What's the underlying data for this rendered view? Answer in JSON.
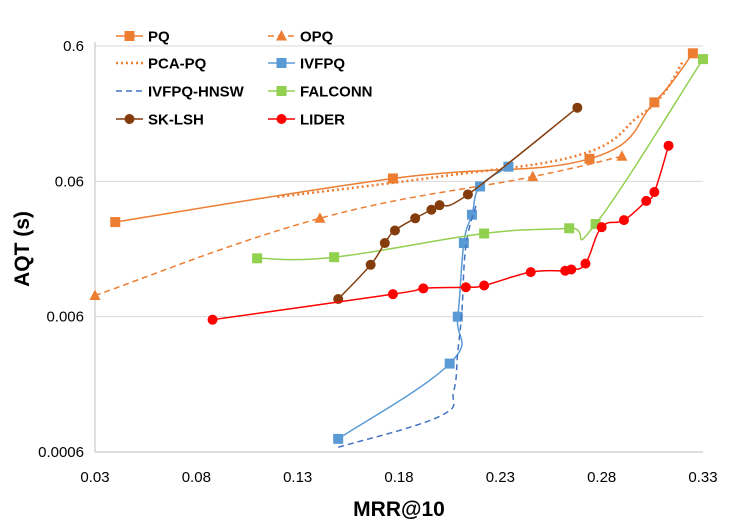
{
  "chart_data": {
    "type": "line",
    "xlabel": "MRR@10",
    "ylabel": "AQT (s)",
    "xscale": "linear",
    "yscale": "log",
    "xlim": [
      0.03,
      0.33
    ],
    "ylim": [
      0.0006,
      0.6
    ],
    "x_ticks": [
      0.03,
      0.08,
      0.13,
      0.18,
      0.23,
      0.28,
      0.33
    ],
    "x_tick_labels": [
      "0.03",
      "0.08",
      "0.13",
      "0.18",
      "0.23",
      "0.28",
      "0.33"
    ],
    "y_ticks": [
      0.0006,
      0.006,
      0.06,
      0.6
    ],
    "y_tick_labels": [
      "0.0006",
      "0.006",
      "0.06",
      "0.6"
    ],
    "grid": "horizontal",
    "legend_position": "top-left",
    "series": [
      {
        "name": "PQ",
        "color": "#ED7D31",
        "dash": "solid",
        "marker": "square",
        "points": [
          [
            0.04,
            0.03
          ],
          [
            0.177,
            0.063
          ],
          [
            0.274,
            0.088
          ],
          [
            0.306,
            0.23
          ],
          [
            0.325,
            0.53
          ]
        ]
      },
      {
        "name": "OPQ",
        "color": "#ED7D31",
        "dash": "dash",
        "marker": "triangle",
        "points": [
          [
            0.03,
            0.0086
          ],
          [
            0.141,
            0.032
          ],
          [
            0.246,
            0.065
          ],
          [
            0.29,
            0.092
          ]
        ]
      },
      {
        "name": "PCA-PQ",
        "color": "#ED7D31",
        "dash": "dot",
        "marker": "none",
        "points": [
          [
            0.12,
            0.046
          ],
          [
            0.2,
            0.065
          ],
          [
            0.27,
            0.095
          ],
          [
            0.298,
            0.18
          ],
          [
            0.31,
            0.26
          ],
          [
            0.32,
            0.46
          ]
        ]
      },
      {
        "name": "IVFPQ",
        "color": "#5B9BD5",
        "dash": "solid",
        "marker": "square",
        "points": [
          [
            0.15,
            0.00075
          ],
          [
            0.205,
            0.0027
          ],
          [
            0.209,
            0.006
          ],
          [
            0.212,
            0.021
          ],
          [
            0.216,
            0.034
          ],
          [
            0.22,
            0.055
          ],
          [
            0.234,
            0.077
          ]
        ]
      },
      {
        "name": "IVFPQ-HNSW",
        "color": "#4472C4",
        "dash": "dash",
        "marker": "none",
        "points": [
          [
            0.15,
            0.00065
          ],
          [
            0.2,
            0.0011
          ],
          [
            0.207,
            0.0017
          ],
          [
            0.209,
            0.0033
          ],
          [
            0.211,
            0.0065
          ],
          [
            0.213,
            0.02
          ],
          [
            0.218,
            0.04
          ]
        ]
      },
      {
        "name": "FALCONN",
        "color": "#92D050",
        "dash": "solid",
        "marker": "square",
        "points": [
          [
            0.11,
            0.0162
          ],
          [
            0.148,
            0.0165
          ],
          [
            0.222,
            0.0247
          ],
          [
            0.264,
            0.027
          ],
          [
            0.277,
            0.029
          ],
          [
            0.33,
            0.48
          ]
        ]
      },
      {
        "name": "SK-LSH",
        "color": "#843C0C",
        "dash": "solid",
        "marker": "circle",
        "points": [
          [
            0.15,
            0.0081
          ],
          [
            0.166,
            0.0145
          ],
          [
            0.173,
            0.021
          ],
          [
            0.178,
            0.026
          ],
          [
            0.188,
            0.032
          ],
          [
            0.196,
            0.037
          ],
          [
            0.2,
            0.04
          ],
          [
            0.214,
            0.048
          ],
          [
            0.268,
            0.21
          ]
        ]
      },
      {
        "name": "LIDER",
        "color": "#FF0000",
        "dash": "solid",
        "marker": "circle",
        "points": [
          [
            0.088,
            0.0057
          ],
          [
            0.177,
            0.0088
          ],
          [
            0.192,
            0.0097
          ],
          [
            0.213,
            0.0099
          ],
          [
            0.222,
            0.0102
          ],
          [
            0.245,
            0.0128
          ],
          [
            0.262,
            0.0131
          ],
          [
            0.265,
            0.0134
          ],
          [
            0.272,
            0.0148
          ],
          [
            0.28,
            0.0275
          ],
          [
            0.291,
            0.031
          ],
          [
            0.302,
            0.043
          ],
          [
            0.306,
            0.05
          ],
          [
            0.313,
            0.11
          ]
        ]
      }
    ]
  }
}
